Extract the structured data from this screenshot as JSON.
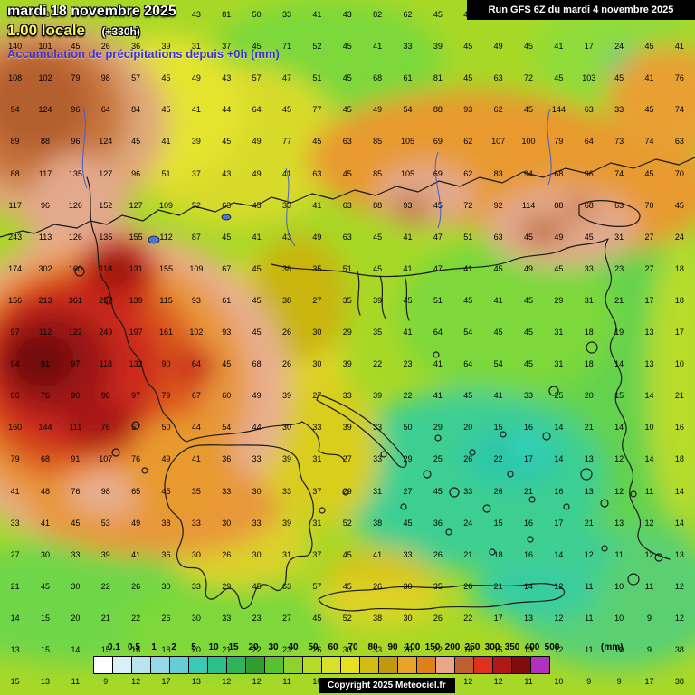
{
  "header": {
    "date_line": "mardi 18 novembre 2025",
    "time_line": "1.00 locale",
    "forecast_offset": "(+330h)",
    "subtitle": "Accumulation de précipitations depuis +0h (mm)",
    "run_info": "Run GFS 6Z du mardi 4 novembre 2025"
  },
  "footer": {
    "copyright": "Copyright 2025 Meteociel.fr"
  },
  "legend": {
    "unit": "(mm)",
    "labels": [
      "0.1",
      "0.5",
      "1",
      "2",
      "5",
      "10",
      "15",
      "20",
      "30",
      "40",
      "50",
      "60",
      "70",
      "80",
      "90",
      "100",
      "150",
      "200",
      "250",
      "300",
      "350",
      "400",
      "500"
    ],
    "colors": [
      "#ffffff",
      "#d8f0f8",
      "#b8e4f0",
      "#96d8e8",
      "#66ccd8",
      "#3cc8b4",
      "#2ebe8c",
      "#2fb45a",
      "#2f9e2f",
      "#57c22e",
      "#8cd42a",
      "#b4dc28",
      "#d8e028",
      "#e8e020",
      "#d4bc14",
      "#c09a0c",
      "#e8a428",
      "#e08018",
      "#e8a888",
      "#c06030",
      "#e03020",
      "#b01818",
      "#800d0d",
      "#b030c0"
    ]
  },
  "colors": {
    "base_field": "#a8d827",
    "heavy_rain_core": "#700c0c",
    "coastline": "#1a1a1a",
    "river": "#4060d0"
  },
  "map_numbers": {
    "rows": [
      "46 38 30 33 39 45 43 81 50 33 41 43 82 62 45 41 39 43 45 41 39 45 51",
      "140 101 45 26 36 39 31 37 45 71 52 45 41 33 39 45 49 45 41 17 24 45 41",
      "108 102 79 98 57 45 49 43 57 47 51 45 68 61 81 45 63 72 45 103 45 41 76",
      "94 124 96 64 84 45 41 44 64 45 77 45 49 54 88 93 62 45 144 63 33 45 74",
      "89 88 96 124 45 41 39 45 49 77 45 63 85 105 69 62 107 100 79 64 73 74 63",
      "88 117 135 127 96 51 37 43 49 41 63 45 85 105 69 62 83 94 68 96 74 45 70",
      "117 96 126 152 127 109 52 63 45 33 41 63 88 93 45 72 92 114 88 68 63 70 45",
      "243 113 126 135 155 112 87 45 41 43 49 63 45 41 47 51 63 45 49 45 31 27 24",
      "174 302 160 118 131 155 109 67 45 38 35 51 45 41 47 41 45 49 45 33 23 27 18",
      "156 213 361 257 139 115 93 61 45 38 27 35 39 45 51 45 41 45 29 31 21 17 18",
      "97 112 122 249 197 161 102 93 45 26 30 29 35 41 64 54 45 45 31 18 19 13 17",
      "94 91 97 118 132 90 64 45 68 26 30 39 22 23 41 64 54 45 31 18 14 13 10",
      "86 76 90 98 97 79 67 60 49 39 27 33 39 22 41 45 41 33 25 20 15 14 21",
      "160 144 111 76 57 50 44 54 44 30 33 39 33 50 29 20 15 16 14 21 14 10 16",
      "79 68 91 107 76 49 41 36 33 39 31 27 33 29 25 26 22 17 14 13 12 14 18",
      "41 48 76 98 65 45 35 33 30 33 37 29 31 27 45 33 26 21 16 13 12 11 14",
      "33 41 45 53 49 38 33 30 33 39 31 52 38 45 36 24 15 16 17 21 13 12 14",
      "27 30 33 39 41 36 30 26 30 31 37 45 41 33 26 21 18 16 14 12 11 12 13",
      "21 45 30 22 26 30 33 29 45 63 57 45 26 30 35 26 21 14 12 11 10 11 12",
      "14 15 20 21 22 26 30 33 23 27 45 52 38 30 26 22 17 13 12 11 10 9 12",
      "13 15 14 15 16 18 20 21 22 23 26 30 33 26 22 18 15 13 12 11 10 9 38",
      "15 13 11 9 12 17 13 12 12 11 10 9 9 10 11 12 12 11 10 9 9 17 38"
    ]
  }
}
